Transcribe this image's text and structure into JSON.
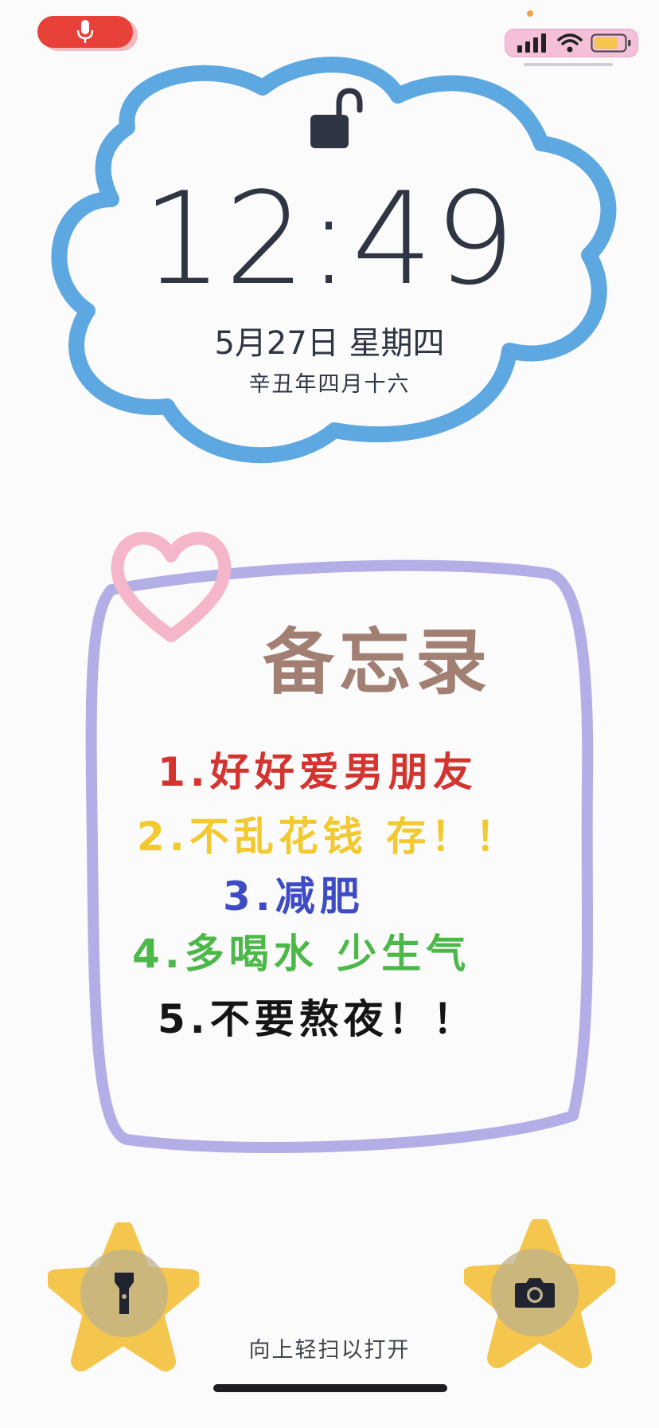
{
  "status": {
    "mic_icon": "microphone-icon",
    "signal_icon": "signal-bars-icon",
    "wifi_icon": "wifi-icon",
    "battery_icon": "battery-icon",
    "colors": {
      "mic": "#e8413a",
      "status_pill": "#f4bfd8",
      "battery": "#f4c64e"
    }
  },
  "lock": {
    "icon": "unlocked-padlock-icon"
  },
  "clock": {
    "time": "12:49",
    "date": "5月27日 星期四",
    "lunar": "辛丑年四月十六"
  },
  "memo": {
    "title": "备忘录",
    "items": [
      {
        "text": "1.好好爱男朋友",
        "color": "#d4342f"
      },
      {
        "text": "2.不乱花钱 存！！",
        "color": "#f2c930"
      },
      {
        "text": "3.减肥",
        "color": "#3d4bc4"
      },
      {
        "text": "4.多喝水 少生气",
        "color": "#4db84a"
      },
      {
        "text": "5.不要熬夜！！",
        "color": "#151515"
      }
    ]
  },
  "bottom": {
    "flashlight_icon": "flashlight-icon",
    "camera_icon": "camera-icon",
    "swipe_hint": "向上轻扫以打开"
  },
  "colors": {
    "cloud": "#5ea8e2",
    "memo_frame": "#b4aee6",
    "heart": "#f4b6c8",
    "star": "#f4c64e",
    "memo_title": "#a17f72"
  }
}
